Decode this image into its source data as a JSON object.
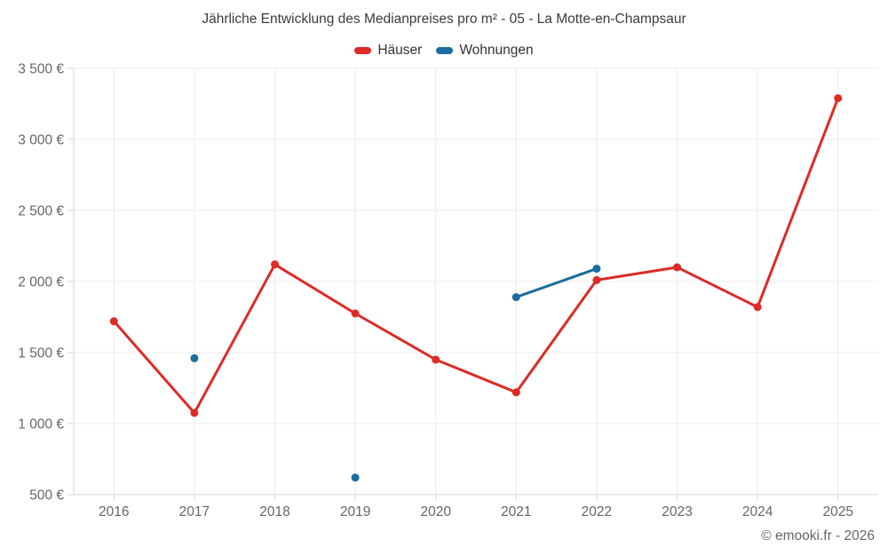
{
  "header": {
    "title": "Jährliche Entwicklung des Medianpreises pro m² - 05 - La Motte-en-Champsaur",
    "legend": [
      {
        "label": "Häuser",
        "color": "#dc2c25"
      },
      {
        "label": "Wohnungen",
        "color": "#1a6d9e"
      }
    ]
  },
  "footer": {
    "attribution": "© emooki.fr - 2026"
  },
  "chart_data": {
    "type": "line",
    "title": "Jährliche Entwicklung des Medianpreises pro m² - 05 - La Motte-en-Champsaur",
    "categories": [
      "2016",
      "2017",
      "2018",
      "2019",
      "2020",
      "2021",
      "2022",
      "2023",
      "2024",
      "2025"
    ],
    "series": [
      {
        "id": "hauser",
        "name": "Häuser",
        "color": "#dc2c25",
        "values": [
          1720,
          1075,
          2120,
          1775,
          1450,
          1220,
          2010,
          2100,
          1820,
          3290
        ]
      },
      {
        "id": "wohnungen",
        "name": "Wohnungen",
        "color": "#1a6d9e",
        "values": [
          null,
          1460,
          null,
          620,
          null,
          1890,
          2090,
          null,
          null,
          null
        ]
      }
    ],
    "xlabel": "",
    "ylabel": "",
    "ylim": [
      500,
      3500
    ],
    "y_ticks": {
      "values": [
        500,
        1000,
        1500,
        2000,
        2500,
        3000,
        3500
      ],
      "labels": [
        "500 €",
        "1 000 €",
        "1 500 €",
        "2 000 €",
        "2 500 €",
        "3 000 €",
        "3 500 €"
      ]
    },
    "grid": true,
    "legend_position": "top"
  }
}
